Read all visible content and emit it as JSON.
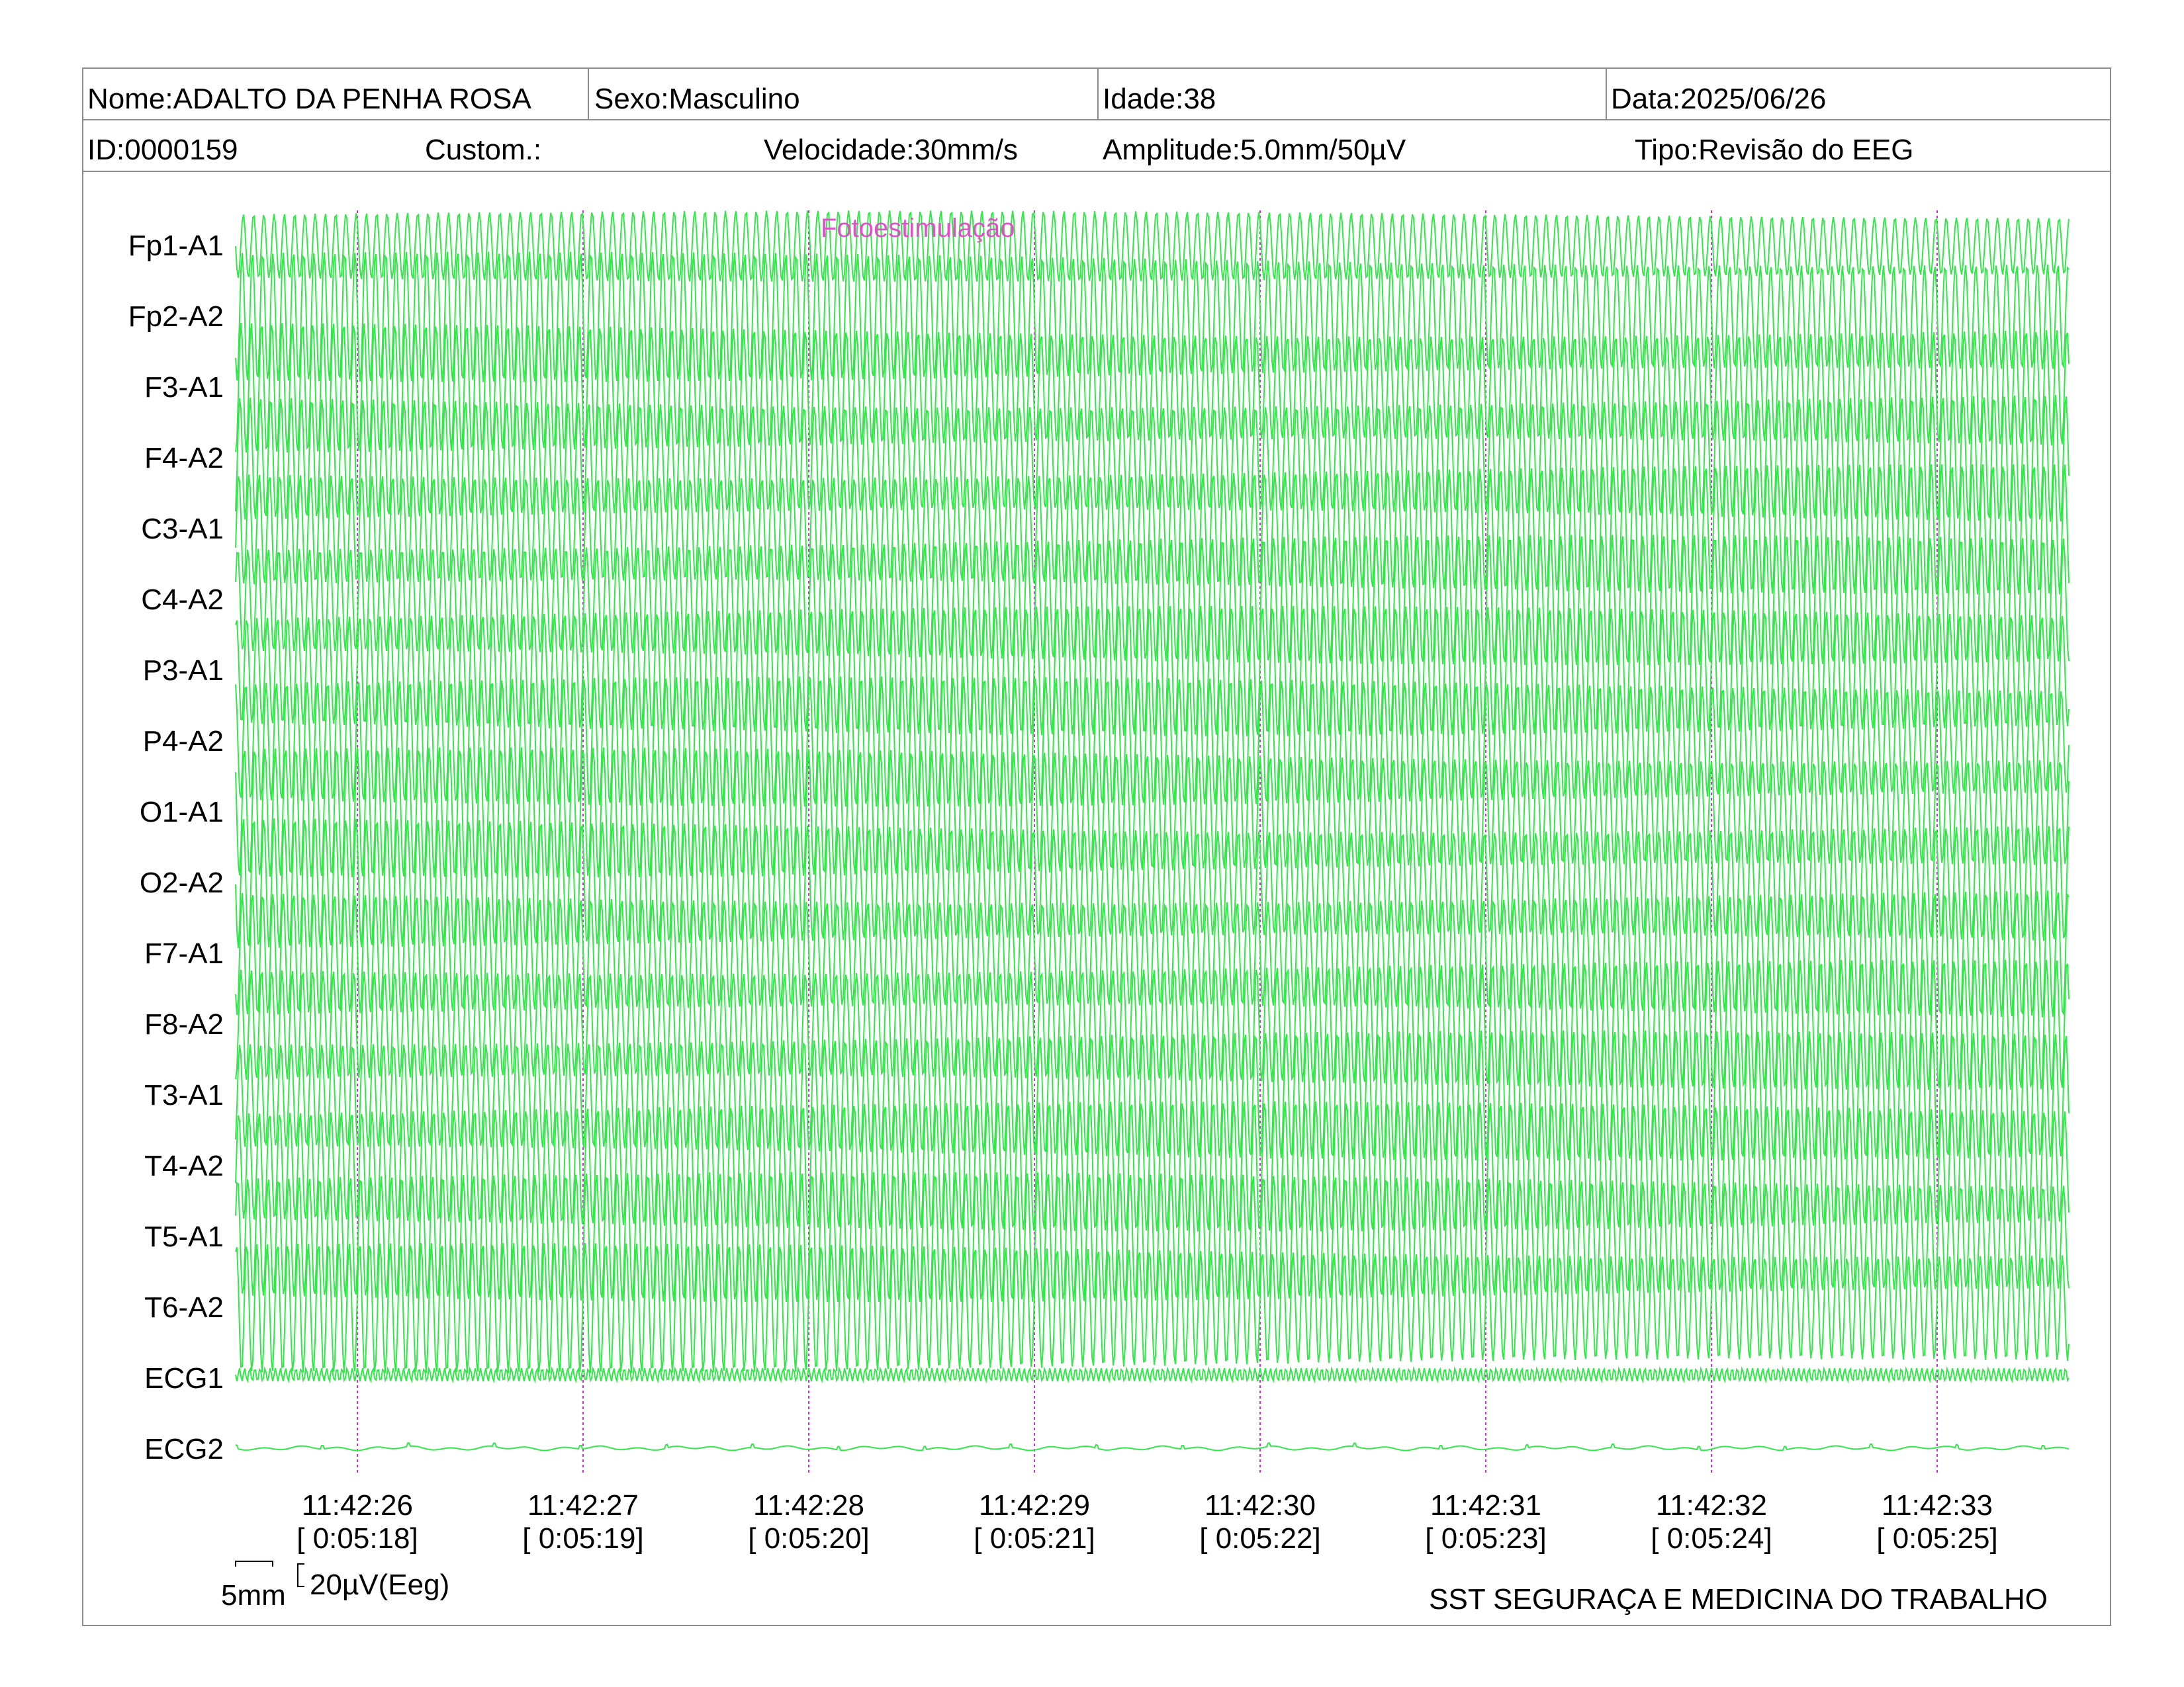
{
  "header": {
    "row1": [
      {
        "label": "Nome:ADALTO DA PENHA ROSA"
      },
      {
        "label": "Sexo:Masculino"
      },
      {
        "label": "Idade:38"
      },
      {
        "label": "Data:2025/06/26"
      }
    ],
    "row2": [
      {
        "label": "ID:0000159"
      },
      {
        "label": "Custom.:"
      },
      {
        "label": "Velocidade:30mm/s"
      },
      {
        "label": "Amplitude:5.0mm/50µV"
      },
      {
        "label": "Tipo:Revisão do EEG"
      }
    ]
  },
  "annotation": {
    "text": "Fotoestimulação",
    "at_time": "11:42:28",
    "color": "#e050c8"
  },
  "calibration": {
    "horizontal": "5mm",
    "vertical": "20µV(Eeg)"
  },
  "footer": {
    "company": "SST SEGURAÇA E MEDICINA DO TRABALHO"
  },
  "colors": {
    "trace": "#33e64a",
    "marker": "#cc33cc",
    "border": "#8c8c8c"
  },
  "chart_data": {
    "type": "line",
    "channels": [
      "Fp1-A1",
      "Fp2-A2",
      "F3-A1",
      "F4-A2",
      "C3-A1",
      "C4-A2",
      "P3-A1",
      "P4-A2",
      "O1-A1",
      "O2-A2",
      "F7-A1",
      "F8-A2",
      "T3-A1",
      "T4-A2",
      "T5-A1",
      "T6-A2",
      "ECG1",
      "ECG2"
    ],
    "time_ticks": [
      {
        "clock": "11:42:26",
        "elapsed": "[ 0:05:18]"
      },
      {
        "clock": "11:42:27",
        "elapsed": "[ 0:05:19]"
      },
      {
        "clock": "11:42:28",
        "elapsed": "[ 0:05:20]"
      },
      {
        "clock": "11:42:29",
        "elapsed": "[ 0:05:21]"
      },
      {
        "clock": "11:42:30",
        "elapsed": "[ 0:05:22]"
      },
      {
        "clock": "11:42:31",
        "elapsed": "[ 0:05:23]"
      },
      {
        "clock": "11:42:32",
        "elapsed": "[ 0:05:24]"
      },
      {
        "clock": "11:42:33",
        "elapsed": "[ 0:05:25]"
      }
    ],
    "eeg_cycles_per_second": 22,
    "ecg1_cycles_per_second": 44
  }
}
